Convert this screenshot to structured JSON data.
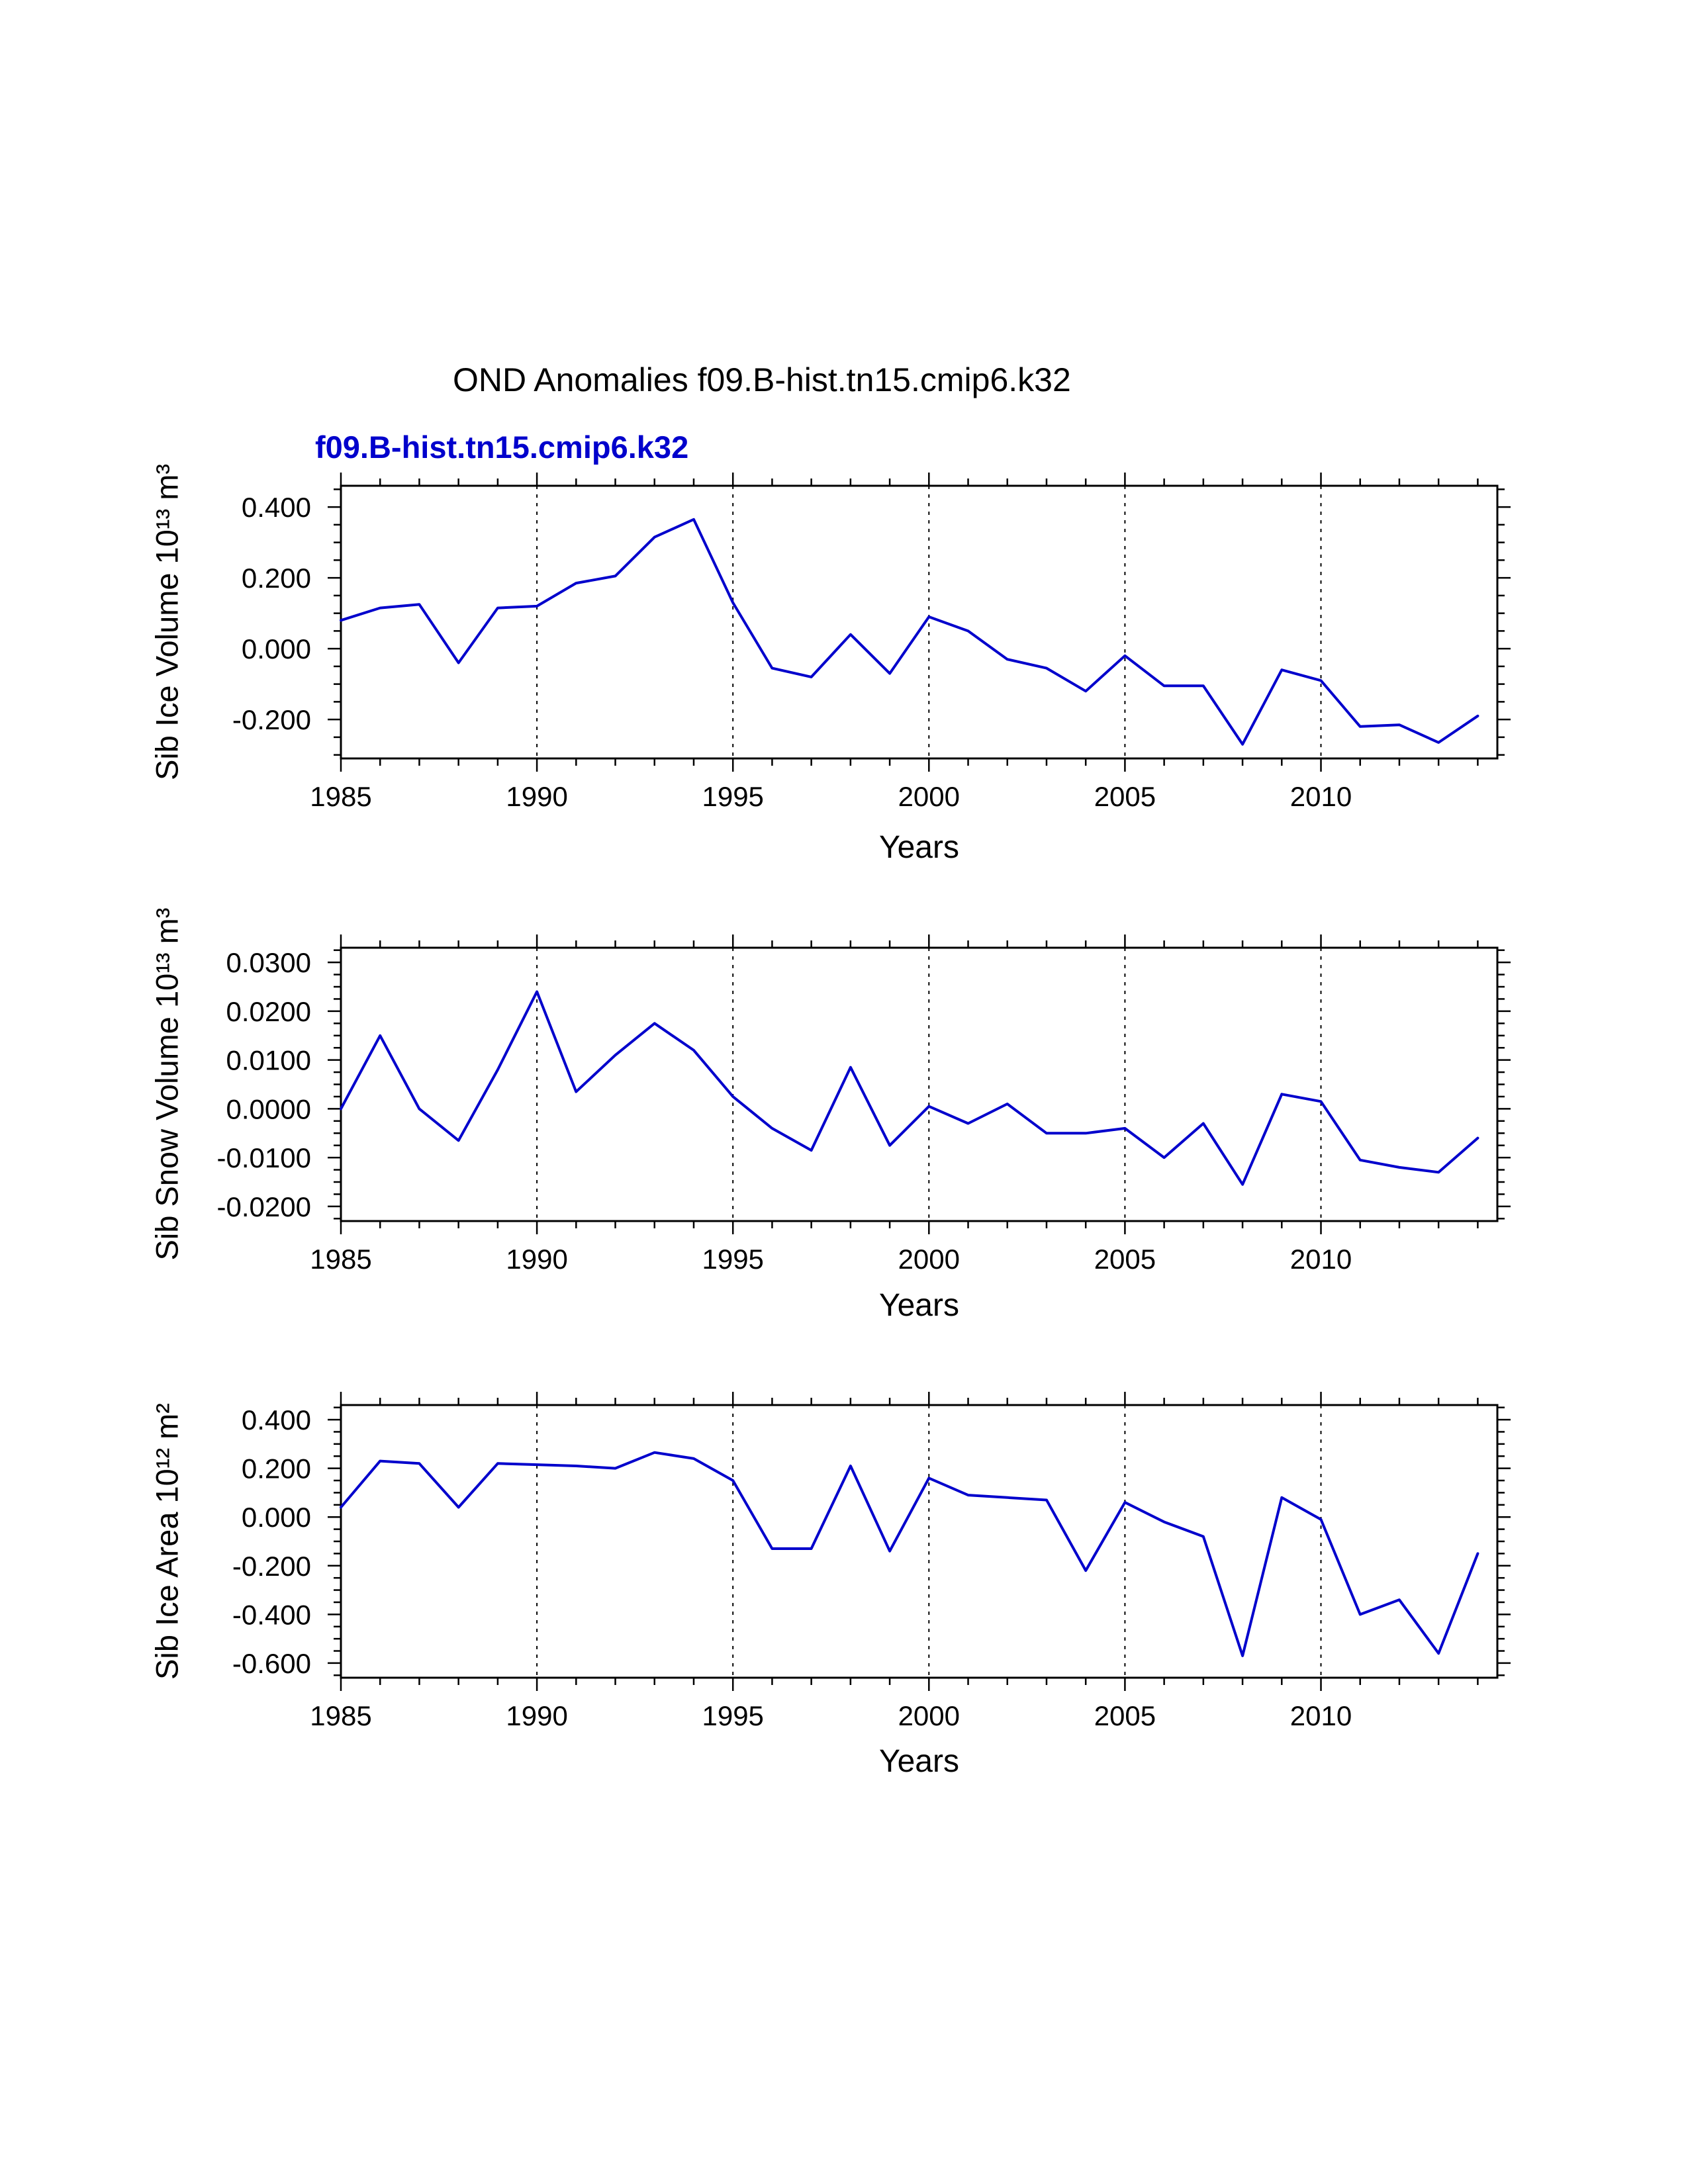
{
  "figure": {
    "title": "OND Anomalies f09.B-hist.tn15.cmip6.k32",
    "legend": "f09.B-hist.tn15.cmip6.k32"
  },
  "colors": {
    "line": "#0000cc",
    "legend_text": "#0000cc",
    "axis": "#000000",
    "grid": "#000000",
    "background": "#ffffff"
  },
  "chart_data": [
    {
      "type": "line",
      "name": "sib-ice-volume",
      "ylabel": "Sib Ice Volume 10¹³ m³",
      "xlabel": "Years",
      "x": [
        1985,
        1986,
        1987,
        1988,
        1989,
        1990,
        1991,
        1992,
        1993,
        1994,
        1995,
        1996,
        1997,
        1998,
        1999,
        2000,
        2001,
        2002,
        2003,
        2004,
        2005,
        2006,
        2007,
        2008,
        2009,
        2010,
        2011,
        2012,
        2013,
        2014
      ],
      "values": [
        0.08,
        0.115,
        0.125,
        -0.04,
        0.115,
        0.12,
        0.185,
        0.205,
        0.315,
        0.365,
        0.13,
        -0.055,
        -0.08,
        0.04,
        -0.07,
        0.09,
        0.05,
        -0.03,
        -0.055,
        -0.12,
        -0.02,
        -0.105,
        -0.105,
        -0.27,
        -0.06,
        -0.09,
        -0.22,
        -0.215,
        -0.265,
        -0.19
      ],
      "ylim": [
        -0.31,
        0.46
      ],
      "yticks": [
        0.4,
        0.2,
        0.0,
        -0.2
      ],
      "ytick_labels": [
        "0.400",
        "0.200",
        "0.000",
        "-0.200"
      ],
      "y_minor_step": 0.05,
      "xlim": [
        1985,
        2014.5
      ],
      "xticks": [
        1985,
        1990,
        1995,
        2000,
        2005,
        2010
      ],
      "x_minor_step": 1,
      "grid_x": [
        1990,
        1995,
        2000,
        2005,
        2010
      ],
      "grid": "vertical-dashed",
      "legend_position": "top-left"
    },
    {
      "type": "line",
      "name": "sib-snow-volume",
      "ylabel": "Sib Snow Volume 10¹³ m³",
      "xlabel": "Years",
      "x": [
        1985,
        1986,
        1987,
        1988,
        1989,
        1990,
        1991,
        1992,
        1993,
        1994,
        1995,
        1996,
        1997,
        1998,
        1999,
        2000,
        2001,
        2002,
        2003,
        2004,
        2005,
        2006,
        2007,
        2008,
        2009,
        2010,
        2011,
        2012,
        2013,
        2014
      ],
      "values": [
        0.0,
        0.015,
        0.0,
        -0.0065,
        0.008,
        0.024,
        0.0035,
        0.011,
        0.0175,
        0.012,
        0.0025,
        -0.004,
        -0.0085,
        0.0085,
        -0.0075,
        0.0005,
        -0.003,
        0.001,
        -0.005,
        -0.005,
        -0.004,
        -0.01,
        -0.003,
        -0.0155,
        0.003,
        0.0015,
        -0.0105,
        -0.012,
        -0.013,
        -0.006
      ],
      "ylim": [
        -0.023,
        0.033
      ],
      "yticks": [
        0.03,
        0.02,
        0.01,
        0.0,
        -0.01,
        -0.02
      ],
      "ytick_labels": [
        "0.0300",
        "0.0200",
        "0.0100",
        "0.0000",
        "-0.0100",
        "-0.0200"
      ],
      "y_minor_step": 0.0025,
      "xlim": [
        1985,
        2014.5
      ],
      "xticks": [
        1985,
        1990,
        1995,
        2000,
        2005,
        2010
      ],
      "x_minor_step": 1,
      "grid_x": [
        1990,
        1995,
        2000,
        2005,
        2010
      ],
      "grid": "vertical-dashed",
      "legend_position": "none"
    },
    {
      "type": "line",
      "name": "sib-ice-area",
      "ylabel": "Sib Ice Area 10¹² m²",
      "xlabel": "Years",
      "x": [
        1985,
        1986,
        1987,
        1988,
        1989,
        1990,
        1991,
        1992,
        1993,
        1994,
        1995,
        1996,
        1997,
        1998,
        1999,
        2000,
        2001,
        2002,
        2003,
        2004,
        2005,
        2006,
        2007,
        2008,
        2009,
        2010,
        2011,
        2012,
        2013,
        2014
      ],
      "values": [
        0.04,
        0.23,
        0.22,
        0.04,
        0.22,
        0.215,
        0.21,
        0.2,
        0.265,
        0.24,
        0.15,
        -0.13,
        -0.13,
        0.21,
        -0.14,
        0.16,
        0.09,
        0.08,
        0.07,
        -0.22,
        0.06,
        -0.02,
        -0.08,
        -0.57,
        0.08,
        -0.01,
        -0.4,
        -0.34,
        -0.56,
        -0.15
      ],
      "ylim": [
        -0.66,
        0.46
      ],
      "yticks": [
        0.4,
        0.2,
        0.0,
        -0.2,
        -0.4,
        -0.6
      ],
      "ytick_labels": [
        "0.400",
        "0.200",
        "0.000",
        "-0.200",
        "-0.400",
        "-0.600"
      ],
      "y_minor_step": 0.05,
      "xlim": [
        1985,
        2014.5
      ],
      "xticks": [
        1985,
        1990,
        1995,
        2000,
        2005,
        2010
      ],
      "x_minor_step": 1,
      "grid_x": [
        1990,
        1995,
        2000,
        2005,
        2010
      ],
      "grid": "vertical-dashed",
      "legend_position": "none"
    }
  ]
}
